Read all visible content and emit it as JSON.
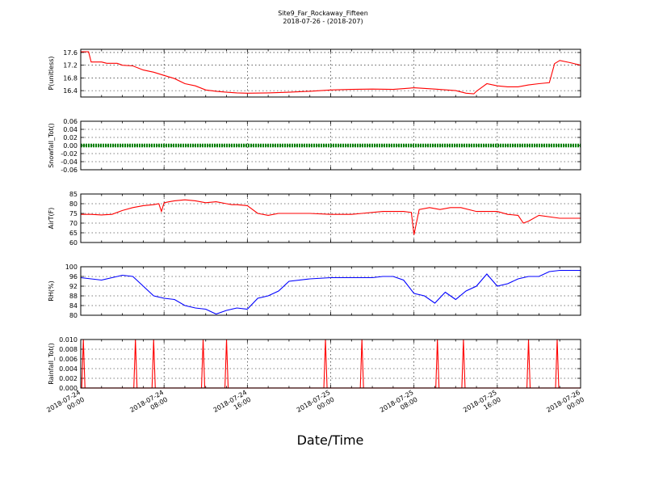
{
  "title": "Site9_Far_Rockaway_Fifteen",
  "subtitle": "2018-07-26 - (2018-207)",
  "xlabel": "Date/Time",
  "chart_data": {
    "type": "line",
    "title": "Site9_Far_Rockaway_Fifteen",
    "subtitle": "2018-07-26 - (2018-207)",
    "xlabel": "Date/Time",
    "x_range": [
      "2018-07-24 00:00",
      "2018-07-26 00:00"
    ],
    "x_ticks": [
      {
        "line1": "2018-07-24",
        "line2": "00:00"
      },
      {
        "line1": "2018-07-24",
        "line2": "08:00"
      },
      {
        "line1": "2018-07-24",
        "line2": "16:00"
      },
      {
        "line1": "2018-07-25",
        "line2": "00:00"
      },
      {
        "line1": "2018-07-25",
        "line2": "08:00"
      },
      {
        "line1": "2018-07-25",
        "line2": "16:00"
      },
      {
        "line1": "2018-07-26",
        "line2": "00:00"
      }
    ],
    "grid": true,
    "panels": [
      {
        "ylabel": "P(unitless)",
        "ylim": [
          16.2,
          17.7
        ],
        "yticks": [
          "16.4",
          "16.8",
          "17.2",
          "17.6"
        ],
        "color": "#ff0000",
        "series": [
          {
            "x": [
              "2018-07-24 00:00",
              "2018-07-24 00:45",
              "2018-07-24 01:00",
              "2018-07-24 02:00",
              "2018-07-24 02:30",
              "2018-07-24 03:30",
              "2018-07-24 04:00",
              "2018-07-24 05:00",
              "2018-07-24 06:00",
              "2018-07-24 07:00",
              "2018-07-24 08:00",
              "2018-07-24 09:00",
              "2018-07-24 10:00",
              "2018-07-24 11:00",
              "2018-07-24 12:00",
              "2018-07-24 13:00",
              "2018-07-24 14:00",
              "2018-07-24 15:00",
              "2018-07-24 16:00",
              "2018-07-24 18:00",
              "2018-07-24 20:00",
              "2018-07-24 22:00",
              "2018-07-25 00:00",
              "2018-07-25 02:00",
              "2018-07-25 04:00",
              "2018-07-25 06:00",
              "2018-07-25 08:00",
              "2018-07-25 10:00",
              "2018-07-25 12:00",
              "2018-07-25 13:00",
              "2018-07-25 13:45",
              "2018-07-25 14:00",
              "2018-07-25 14:30",
              "2018-07-25 15:00",
              "2018-07-25 16:00",
              "2018-07-25 17:00",
              "2018-07-25 18:00",
              "2018-07-25 19:00",
              "2018-07-25 20:00",
              "2018-07-25 21:00",
              "2018-07-25 21:30",
              "2018-07-25 22:00",
              "2018-07-25 23:00",
              "2018-07-26 00:00"
            ],
            "y": [
              17.62,
              17.62,
              17.3,
              17.3,
              17.26,
              17.26,
              17.2,
              17.18,
              17.05,
              16.98,
              16.88,
              16.78,
              16.62,
              16.55,
              16.42,
              16.38,
              16.35,
              16.33,
              16.32,
              16.33,
              16.35,
              16.38,
              16.42,
              16.44,
              16.45,
              16.44,
              16.49,
              16.45,
              16.4,
              16.32,
              16.3,
              16.38,
              16.5,
              16.62,
              16.55,
              16.52,
              16.52,
              16.58,
              16.62,
              16.65,
              17.25,
              17.35,
              17.28,
              17.2
            ]
          }
        ]
      },
      {
        "ylabel": "Snowfall_Tot()",
        "ylim": [
          -0.06,
          0.06
        ],
        "yticks": [
          "-0.06",
          "-0.04",
          "-0.02",
          "0.00",
          "0.02",
          "0.04",
          "0.06"
        ],
        "color": "#008000",
        "marker": "dot",
        "series": [
          {
            "x": [
              "2018-07-24 00:00",
              "2018-07-26 00:00"
            ],
            "y": [
              0,
              0
            ]
          }
        ]
      },
      {
        "ylabel": "AirT(F)",
        "ylim": [
          60,
          85
        ],
        "yticks": [
          "60",
          "65",
          "70",
          "75",
          "80",
          "85"
        ],
        "color": "#ff0000",
        "series": [
          {
            "x": [
              "2018-07-24 00:00",
              "2018-07-24 01:00",
              "2018-07-24 02:00",
              "2018-07-24 03:00",
              "2018-07-24 04:00",
              "2018-07-24 05:00",
              "2018-07-24 06:00",
              "2018-07-24 07:00",
              "2018-07-24 07:30",
              "2018-07-24 07:45",
              "2018-07-24 08:00",
              "2018-07-24 08:30",
              "2018-07-24 09:00",
              "2018-07-24 10:00",
              "2018-07-24 11:00",
              "2018-07-24 12:00",
              "2018-07-24 13:00",
              "2018-07-24 14:00",
              "2018-07-24 14:30",
              "2018-07-24 15:00",
              "2018-07-24 16:00",
              "2018-07-24 17:00",
              "2018-07-24 18:00",
              "2018-07-24 19:00",
              "2018-07-24 22:00",
              "2018-07-25 00:00",
              "2018-07-25 02:00",
              "2018-07-25 03:00",
              "2018-07-25 05:00",
              "2018-07-25 07:00",
              "2018-07-25 07:45",
              "2018-07-25 08:00",
              "2018-07-25 08:30",
              "2018-07-25 09:30",
              "2018-07-25 10:30",
              "2018-07-25 11:30",
              "2018-07-25 12:30",
              "2018-07-25 14:00",
              "2018-07-25 15:00",
              "2018-07-25 16:00",
              "2018-07-25 17:00",
              "2018-07-25 18:00",
              "2018-07-25 18:30",
              "2018-07-25 19:00",
              "2018-07-25 20:00",
              "2018-07-25 22:00",
              "2018-07-26 00:00"
            ],
            "y": [
              74.5,
              74.5,
              74.2,
              74.5,
              76.5,
              78,
              79,
              79.5,
              80,
              76,
              80.5,
              81,
              81.5,
              82,
              81.5,
              80.5,
              81,
              80,
              79.5,
              79.5,
              79,
              75,
              74,
              75,
              75,
              74.5,
              74.5,
              75,
              76,
              76,
              75.5,
              64,
              77,
              78,
              77,
              78,
              78,
              76,
              76,
              76,
              74.5,
              74,
              70,
              71,
              74,
              72.5,
              72.5
            ]
          }
        ]
      },
      {
        "ylabel": "RH(%)",
        "ylim": [
          80,
          100
        ],
        "yticks": [
          "80",
          "84",
          "88",
          "92",
          "96",
          "100"
        ],
        "color": "#0000ff",
        "series": [
          {
            "x": [
              "2018-07-24 00:00",
              "2018-07-24 01:00",
              "2018-07-24 02:00",
              "2018-07-24 03:00",
              "2018-07-24 04:00",
              "2018-07-24 05:00",
              "2018-07-24 06:00",
              "2018-07-24 07:00",
              "2018-07-24 08:00",
              "2018-07-24 09:00",
              "2018-07-24 10:00",
              "2018-07-24 11:00",
              "2018-07-24 12:00",
              "2018-07-24 13:00",
              "2018-07-24 14:00",
              "2018-07-24 15:00",
              "2018-07-24 16:00",
              "2018-07-24 17:00",
              "2018-07-24 18:00",
              "2018-07-24 19:00",
              "2018-07-24 20:00",
              "2018-07-24 22:00",
              "2018-07-25 00:00",
              "2018-07-25 02:00",
              "2018-07-25 03:00",
              "2018-07-25 04:00",
              "2018-07-25 05:00",
              "2018-07-25 06:00",
              "2018-07-25 07:00",
              "2018-07-25 08:00",
              "2018-07-25 09:00",
              "2018-07-25 10:00",
              "2018-07-25 11:00",
              "2018-07-25 12:00",
              "2018-07-25 13:00",
              "2018-07-25 14:00",
              "2018-07-25 15:00",
              "2018-07-25 16:00",
              "2018-07-25 17:00",
              "2018-07-25 18:00",
              "2018-07-25 19:00",
              "2018-07-25 20:00",
              "2018-07-25 21:00",
              "2018-07-25 22:00",
              "2018-07-26 00:00"
            ],
            "y": [
              95.5,
              95,
              94.5,
              95.5,
              96.5,
              96,
              92,
              88,
              87,
              86.5,
              84,
              83,
              82.5,
              80.5,
              82,
              83,
              82.5,
              87,
              88,
              90,
              94,
              95,
              95.5,
              95.5,
              95.5,
              95.5,
              96,
              96,
              94.5,
              89,
              88,
              85,
              89.5,
              86.5,
              90,
              92,
              97,
              92,
              93,
              95,
              96,
              96,
              98,
              98.5,
              98.5
            ]
          }
        ]
      },
      {
        "ylabel": "Rainfall_Tot()",
        "ylim": [
          0,
          0.01
        ],
        "yticks": [
          "0.000",
          "0.002",
          "0.004",
          "0.006",
          "0.008",
          "0.010"
        ],
        "color": "#ff0000",
        "spikes": [
          "2018-07-24 00:15",
          "2018-07-24 05:15",
          "2018-07-24 07:00",
          "2018-07-24 11:45",
          "2018-07-24 14:00",
          "2018-07-24 23:30",
          "2018-07-25 03:00",
          "2018-07-25 10:15",
          "2018-07-25 12:45",
          "2018-07-25 19:00",
          "2018-07-25 21:45"
        ],
        "spike_value": 0.01
      }
    ]
  }
}
